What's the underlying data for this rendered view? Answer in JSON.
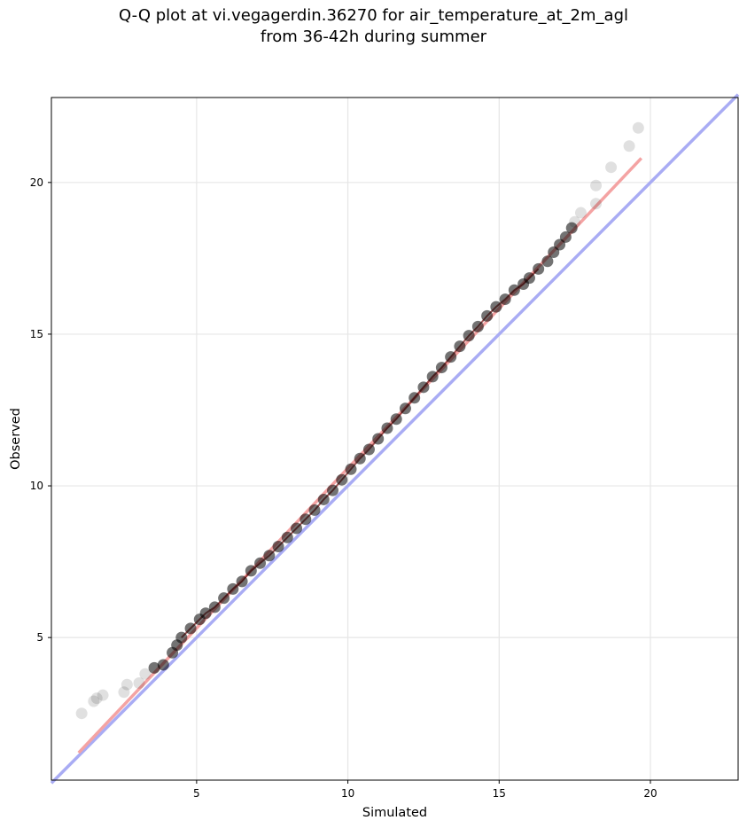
{
  "chart_data": {
    "type": "scatter",
    "title": "Q-Q plot at vi.vegagerdin.36270 for air_temperature_at_2m_agl",
    "subtitle": "from 36-42h during summer",
    "xlabel": "Simulated",
    "ylabel": "Observed",
    "xlim": [
      0.2,
      22.9
    ],
    "ylim": [
      0.3,
      22.8
    ],
    "xticks": [
      5,
      10,
      15,
      20
    ],
    "yticks": [
      5,
      10,
      15,
      20
    ],
    "xtick_labels": [
      "5",
      "10",
      "15",
      "20"
    ],
    "ytick_labels": [
      "5",
      "10",
      "15",
      "20"
    ],
    "grid": true,
    "points": [
      [
        1.2,
        2.5
      ],
      [
        1.6,
        2.9
      ],
      [
        1.7,
        3.0
      ],
      [
        1.9,
        3.1
      ],
      [
        2.6,
        3.2
      ],
      [
        2.7,
        3.45
      ],
      [
        3.1,
        3.5
      ],
      [
        3.3,
        3.8
      ],
      [
        3.6,
        4.0
      ],
      [
        3.9,
        4.1
      ],
      [
        4.2,
        4.5
      ],
      [
        4.35,
        4.75
      ],
      [
        4.5,
        5.0
      ],
      [
        4.8,
        5.3
      ],
      [
        5.1,
        5.6
      ],
      [
        5.3,
        5.8
      ],
      [
        5.6,
        6.0
      ],
      [
        5.9,
        6.3
      ],
      [
        6.2,
        6.6
      ],
      [
        6.5,
        6.85
      ],
      [
        6.8,
        7.2
      ],
      [
        7.1,
        7.45
      ],
      [
        7.4,
        7.7
      ],
      [
        7.7,
        8.0
      ],
      [
        8.0,
        8.3
      ],
      [
        8.3,
        8.6
      ],
      [
        8.6,
        8.9
      ],
      [
        8.9,
        9.2
      ],
      [
        9.2,
        9.55
      ],
      [
        9.5,
        9.85
      ],
      [
        9.8,
        10.2
      ],
      [
        10.1,
        10.55
      ],
      [
        10.4,
        10.9
      ],
      [
        10.7,
        11.2
      ],
      [
        11.0,
        11.55
      ],
      [
        11.3,
        11.9
      ],
      [
        11.6,
        12.2
      ],
      [
        11.9,
        12.55
      ],
      [
        12.2,
        12.9
      ],
      [
        12.5,
        13.25
      ],
      [
        12.8,
        13.6
      ],
      [
        13.1,
        13.9
      ],
      [
        13.4,
        14.25
      ],
      [
        13.7,
        14.6
      ],
      [
        14.0,
        14.95
      ],
      [
        14.3,
        15.25
      ],
      [
        14.6,
        15.6
      ],
      [
        14.9,
        15.9
      ],
      [
        15.2,
        16.15
      ],
      [
        15.5,
        16.45
      ],
      [
        15.8,
        16.65
      ],
      [
        16.0,
        16.85
      ],
      [
        16.3,
        17.15
      ],
      [
        16.6,
        17.4
      ],
      [
        16.8,
        17.7
      ],
      [
        17.0,
        17.95
      ],
      [
        17.2,
        18.2
      ],
      [
        17.4,
        18.5
      ],
      [
        17.5,
        18.7
      ],
      [
        17.7,
        19.0
      ],
      [
        18.2,
        19.3
      ],
      [
        18.2,
        19.9
      ],
      [
        18.7,
        20.5
      ],
      [
        19.3,
        21.2
      ],
      [
        19.6,
        21.8
      ]
    ],
    "fit_line": {
      "x": [
        1.1,
        19.7
      ],
      "y": [
        1.2,
        20.8
      ],
      "color": "#f4a3a3"
    },
    "identity_line": {
      "x": [
        0.2,
        22.9
      ],
      "y": [
        0.2,
        22.9
      ],
      "color": "#a9acf4"
    },
    "point_color": "#000000",
    "core_color": "#7a0f0f"
  }
}
